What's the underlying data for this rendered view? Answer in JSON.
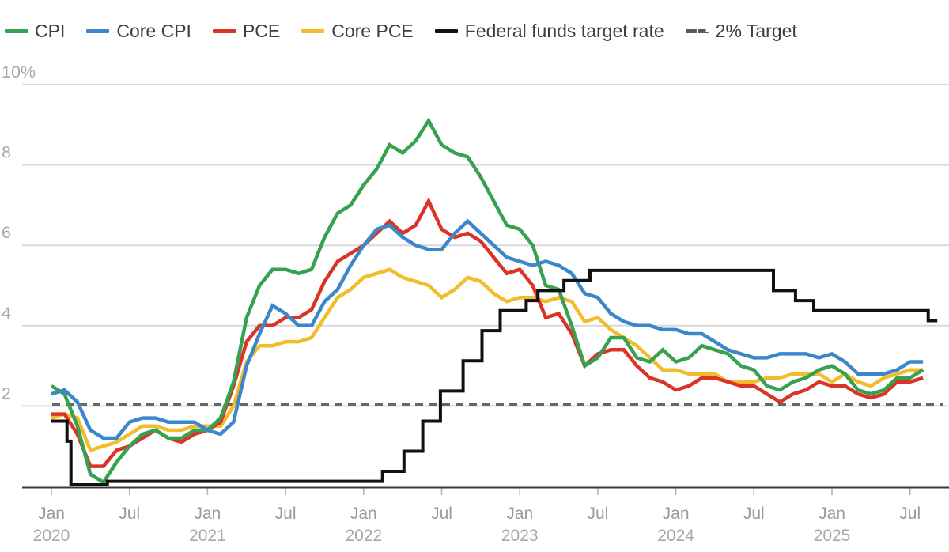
{
  "colors": {
    "cpi": "#36a24f",
    "core_cpi": "#3c87c9",
    "pce": "#dc3327",
    "core_pce": "#f3bc2a",
    "fed_funds": "#111111",
    "target_dash": "#666666",
    "gridline": "#d9d9d9",
    "axis_line": "#3a3a3a",
    "tick": "#b3b3b3",
    "y_label": "#a8a8a8",
    "x_month_label": "#9a9a9a",
    "x_year_label": "#a8a8a8",
    "legend_text": "#3e3e3e"
  },
  "legend": {
    "items": [
      {
        "label": "CPI",
        "color": "#36a24f",
        "style": "solid"
      },
      {
        "label": "Core CPI",
        "color": "#3c87c9",
        "style": "solid"
      },
      {
        "label": "PCE",
        "color": "#dc3327",
        "style": "solid"
      },
      {
        "label": "Core PCE",
        "color": "#f3bc2a",
        "style": "solid"
      },
      {
        "label": "Federal funds target rate",
        "color": "#111111",
        "style": "solid"
      },
      {
        "label": "2% Target",
        "color": "#5a5a5a",
        "style": "dashed"
      }
    ]
  },
  "y_axis": {
    "labels": [
      {
        "value": 10,
        "text": "10%"
      },
      {
        "value": 8,
        "text": "8"
      },
      {
        "value": 6,
        "text": "6"
      },
      {
        "value": 4,
        "text": "4"
      },
      {
        "value": 2,
        "text": "2"
      }
    ]
  },
  "x_axis": {
    "ticks": [
      {
        "m": 0,
        "month": "Jan",
        "year": "2020"
      },
      {
        "m": 6,
        "month": "Jul",
        "year": ""
      },
      {
        "m": 12,
        "month": "Jan",
        "year": "2021"
      },
      {
        "m": 18,
        "month": "Jul",
        "year": ""
      },
      {
        "m": 24,
        "month": "Jan",
        "year": "2022"
      },
      {
        "m": 30,
        "month": "Jul",
        "year": ""
      },
      {
        "m": 36,
        "month": "Jan",
        "year": "2023"
      },
      {
        "m": 42,
        "month": "Jul",
        "year": ""
      },
      {
        "m": 48,
        "month": "Jan",
        "year": "2024"
      },
      {
        "m": 54,
        "month": "Jul",
        "year": ""
      },
      {
        "m": 60,
        "month": "Jan",
        "year": "2025"
      },
      {
        "m": 66,
        "month": "Jul",
        "year": ""
      }
    ]
  },
  "chart_data": {
    "type": "line",
    "frequency": "monthly",
    "x_start": "2020-01",
    "x_end": "2025-08",
    "ylim": [
      0,
      10
    ],
    "y_gridlines": [
      2,
      4,
      6,
      8,
      10
    ],
    "grid": true,
    "legend_position": "top-left",
    "target_line": {
      "label": "2% Target",
      "value": 2
    },
    "series": [
      {
        "name": "CPI",
        "color": "#36a24f",
        "values": [
          2.5,
          2.3,
          1.5,
          0.3,
          0.1,
          0.6,
          1.0,
          1.3,
          1.4,
          1.2,
          1.2,
          1.4,
          1.4,
          1.7,
          2.6,
          4.2,
          5.0,
          5.4,
          5.4,
          5.3,
          5.4,
          6.2,
          6.8,
          7.0,
          7.5,
          7.9,
          8.5,
          8.3,
          8.6,
          9.1,
          8.5,
          8.3,
          8.2,
          7.7,
          7.1,
          6.5,
          6.4,
          6.0,
          5.0,
          4.9,
          4.0,
          3.0,
          3.2,
          3.7,
          3.7,
          3.2,
          3.1,
          3.4,
          3.1,
          3.2,
          3.5,
          3.4,
          3.3,
          3.0,
          2.9,
          2.5,
          2.4,
          2.6,
          2.7,
          2.9,
          3.0,
          2.8,
          2.4,
          2.3,
          2.4,
          2.7,
          2.7,
          2.9
        ]
      },
      {
        "name": "Core CPI",
        "color": "#3c87c9",
        "values": [
          2.3,
          2.4,
          2.1,
          1.4,
          1.2,
          1.2,
          1.6,
          1.7,
          1.7,
          1.6,
          1.6,
          1.6,
          1.4,
          1.3,
          1.6,
          3.0,
          3.8,
          4.5,
          4.3,
          4.0,
          4.0,
          4.6,
          4.9,
          5.5,
          6.0,
          6.4,
          6.5,
          6.2,
          6.0,
          5.9,
          5.9,
          6.3,
          6.6,
          6.3,
          6.0,
          5.7,
          5.6,
          5.5,
          5.6,
          5.5,
          5.3,
          4.8,
          4.7,
          4.3,
          4.1,
          4.0,
          4.0,
          3.9,
          3.9,
          3.8,
          3.8,
          3.6,
          3.4,
          3.3,
          3.2,
          3.2,
          3.3,
          3.3,
          3.3,
          3.2,
          3.3,
          3.1,
          2.8,
          2.8,
          2.8,
          2.9,
          3.1,
          3.1
        ]
      },
      {
        "name": "PCE",
        "color": "#dc3327",
        "values": [
          1.8,
          1.8,
          1.3,
          0.5,
          0.5,
          0.9,
          1.0,
          1.2,
          1.4,
          1.2,
          1.1,
          1.3,
          1.4,
          1.6,
          2.5,
          3.6,
          4.0,
          4.0,
          4.2,
          4.2,
          4.4,
          5.1,
          5.6,
          5.8,
          6.0,
          6.3,
          6.6,
          6.3,
          6.5,
          7.1,
          6.4,
          6.2,
          6.3,
          6.1,
          5.7,
          5.3,
          5.4,
          5.0,
          4.2,
          4.3,
          3.8,
          3.0,
          3.3,
          3.4,
          3.4,
          3.0,
          2.7,
          2.6,
          2.4,
          2.5,
          2.7,
          2.7,
          2.6,
          2.5,
          2.5,
          2.3,
          2.1,
          2.3,
          2.4,
          2.6,
          2.5,
          2.5,
          2.3,
          2.2,
          2.3,
          2.6,
          2.6,
          2.7
        ]
      },
      {
        "name": "Core PCE",
        "color": "#f3bc2a",
        "values": [
          1.7,
          1.8,
          1.7,
          0.9,
          1.0,
          1.1,
          1.3,
          1.5,
          1.5,
          1.4,
          1.4,
          1.5,
          1.5,
          1.5,
          2.0,
          3.1,
          3.5,
          3.5,
          3.6,
          3.6,
          3.7,
          4.2,
          4.7,
          4.9,
          5.2,
          5.3,
          5.4,
          5.2,
          5.1,
          5.0,
          4.7,
          4.9,
          5.2,
          5.1,
          4.8,
          4.6,
          4.7,
          4.7,
          4.6,
          4.7,
          4.6,
          4.1,
          4.2,
          3.9,
          3.7,
          3.5,
          3.2,
          2.9,
          2.9,
          2.8,
          2.8,
          2.8,
          2.6,
          2.6,
          2.6,
          2.7,
          2.7,
          2.8,
          2.8,
          2.8,
          2.6,
          2.8,
          2.6,
          2.5,
          2.7,
          2.8,
          2.9,
          2.9
        ]
      }
    ],
    "fed_funds": {
      "name": "Federal funds target rate",
      "color": "#111111",
      "breakpoints": [
        [
          0,
          1.625
        ],
        [
          1.2,
          1.125
        ],
        [
          1.5,
          0.04
        ],
        [
          4.3,
          0.125
        ],
        [
          25.45,
          0.375
        ],
        [
          27.1,
          0.875
        ],
        [
          28.55,
          1.625
        ],
        [
          29.9,
          2.375
        ],
        [
          31.65,
          3.125
        ],
        [
          33.1,
          3.875
        ],
        [
          34.5,
          4.375
        ],
        [
          36.5,
          4.625
        ],
        [
          37.4,
          4.875
        ],
        [
          39.4,
          5.125
        ],
        [
          41.4,
          5.375
        ],
        [
          55.5,
          4.875
        ],
        [
          57.2,
          4.625
        ],
        [
          58.6,
          4.375
        ],
        [
          67.4,
          4.125
        ]
      ],
      "end_m": 68.1
    }
  }
}
